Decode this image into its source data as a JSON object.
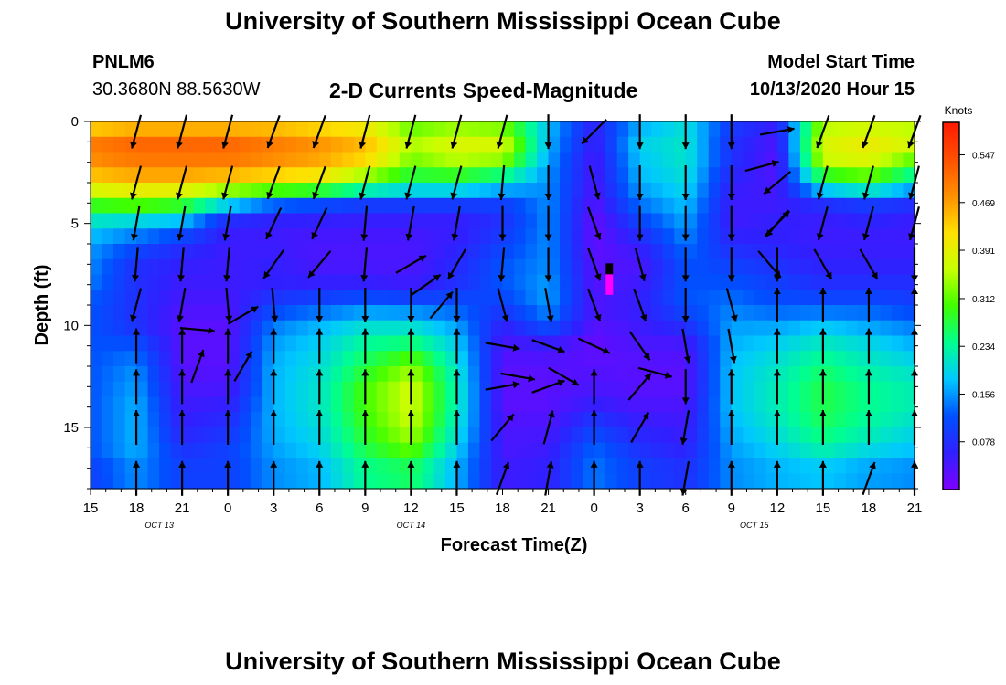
{
  "header": {
    "title": "University of Southern Mississippi Ocean Cube",
    "station_id": "PNLM6",
    "station_coords": "30.3680N 88.5630W",
    "chart_title": "2-D Currents Speed-Magnitude",
    "model_label": "Model Start Time",
    "model_time": "10/13/2020 Hour 15"
  },
  "footer": {
    "title": "University of Southern Mississippi Ocean Cube"
  },
  "chart_data": {
    "type": "heatmap",
    "title": "2-D Currents Speed-Magnitude",
    "xlabel": "Forecast Time(Z)",
    "ylabel": "Depth (ft)",
    "x_ticks": [
      {
        "t": 0,
        "label": "15"
      },
      {
        "t": 3,
        "label": "18"
      },
      {
        "t": 6,
        "label": "21"
      },
      {
        "t": 9,
        "label": "0"
      },
      {
        "t": 12,
        "label": "3"
      },
      {
        "t": 15,
        "label": "6"
      },
      {
        "t": 18,
        "label": "9"
      },
      {
        "t": 21,
        "label": "12"
      },
      {
        "t": 24,
        "label": "15"
      },
      {
        "t": 27,
        "label": "18"
      },
      {
        "t": 30,
        "label": "21"
      },
      {
        "t": 33,
        "label": "0"
      },
      {
        "t": 36,
        "label": "3"
      },
      {
        "t": 39,
        "label": "6"
      },
      {
        "t": 42,
        "label": "9"
      },
      {
        "t": 45,
        "label": "12"
      },
      {
        "t": 48,
        "label": "15"
      },
      {
        "t": 51,
        "label": "18"
      },
      {
        "t": 54,
        "label": "21"
      }
    ],
    "date_labels": [
      {
        "t": 4.5,
        "label": "OCT  13"
      },
      {
        "t": 21,
        "label": "OCT  14"
      },
      {
        "t": 43.5,
        "label": "OCT  15"
      }
    ],
    "xlim": [
      0,
      54
    ],
    "ylim": [
      0,
      18
    ],
    "y_ticks": [
      0,
      5,
      10,
      15
    ],
    "legend": {
      "unit": "Knots",
      "range": [
        0,
        0.6
      ],
      "ticks": [
        0.078,
        0.156,
        0.234,
        0.312,
        0.391,
        0.469,
        0.547
      ],
      "tick_labels": [
        "0.078",
        "0.156",
        "0.234",
        "0.312",
        "0.391",
        "0.469",
        "0.547"
      ],
      "colors": [
        "#7f00ff",
        "#3020ff",
        "#0050ff",
        "#00c8ff",
        "#00ff90",
        "#40ff00",
        "#c8ff00",
        "#ffe000",
        "#ff9000",
        "#ff5000",
        "#ff1a00"
      ]
    },
    "grid_depths": [
      0,
      1,
      2,
      3,
      4,
      5,
      6,
      7,
      8,
      9,
      10,
      11,
      12,
      13,
      14,
      15,
      16,
      17,
      18
    ],
    "speed_profiles": [
      {
        "t": 0,
        "speeds": [
          0.4,
          0.5,
          0.48,
          0.42,
          0.3,
          0.2,
          0.16,
          0.15,
          0.14,
          0.12,
          0.12,
          0.12,
          0.12,
          0.12,
          0.12,
          0.12,
          0.12,
          0.1,
          0.1
        ]
      },
      {
        "t": 3,
        "speeds": [
          0.42,
          0.52,
          0.5,
          0.44,
          0.32,
          0.18,
          0.12,
          0.08,
          0.08,
          0.08,
          0.08,
          0.12,
          0.15,
          0.16,
          0.17,
          0.17,
          0.17,
          0.15,
          0.15
        ]
      },
      {
        "t": 6,
        "speeds": [
          0.42,
          0.52,
          0.5,
          0.44,
          0.3,
          0.16,
          0.08,
          0.06,
          0.05,
          0.04,
          0.03,
          0.03,
          0.03,
          0.04,
          0.05,
          0.06,
          0.08,
          0.1,
          0.1
        ]
      },
      {
        "t": 9,
        "speeds": [
          0.42,
          0.52,
          0.5,
          0.42,
          0.2,
          0.06,
          0.05,
          0.05,
          0.05,
          0.04,
          0.03,
          0.03,
          0.03,
          0.04,
          0.06,
          0.08,
          0.1,
          0.1,
          0.1
        ]
      },
      {
        "t": 12,
        "speeds": [
          0.42,
          0.5,
          0.48,
          0.4,
          0.14,
          0.05,
          0.05,
          0.06,
          0.06,
          0.1,
          0.14,
          0.16,
          0.17,
          0.17,
          0.17,
          0.17,
          0.16,
          0.15,
          0.15
        ]
      },
      {
        "t": 15,
        "speeds": [
          0.4,
          0.48,
          0.46,
          0.38,
          0.12,
          0.05,
          0.04,
          0.04,
          0.06,
          0.12,
          0.17,
          0.19,
          0.2,
          0.21,
          0.21,
          0.2,
          0.19,
          0.17,
          0.17
        ]
      },
      {
        "t": 18,
        "speeds": [
          0.38,
          0.45,
          0.42,
          0.3,
          0.1,
          0.05,
          0.04,
          0.04,
          0.06,
          0.14,
          0.2,
          0.24,
          0.27,
          0.3,
          0.3,
          0.29,
          0.27,
          0.24,
          0.24
        ]
      },
      {
        "t": 21,
        "speeds": [
          0.3,
          0.35,
          0.32,
          0.25,
          0.1,
          0.05,
          0.04,
          0.04,
          0.05,
          0.13,
          0.2,
          0.26,
          0.33,
          0.37,
          0.37,
          0.36,
          0.32,
          0.26,
          0.26
        ]
      },
      {
        "t": 24,
        "speeds": [
          0.32,
          0.38,
          0.35,
          0.25,
          0.1,
          0.05,
          0.06,
          0.07,
          0.08,
          0.12,
          0.16,
          0.19,
          0.21,
          0.22,
          0.22,
          0.21,
          0.19,
          0.17,
          0.17
        ]
      },
      {
        "t": 27,
        "speeds": [
          0.3,
          0.38,
          0.33,
          0.2,
          0.1,
          0.08,
          0.1,
          0.12,
          0.12,
          0.1,
          0.06,
          0.04,
          0.03,
          0.03,
          0.03,
          0.04,
          0.04,
          0.05,
          0.05
        ]
      },
      {
        "t": 30,
        "speeds": [
          0.18,
          0.17,
          0.16,
          0.15,
          0.15,
          0.15,
          0.15,
          0.15,
          0.16,
          0.16,
          0.12,
          0.05,
          0.03,
          0.03,
          0.03,
          0.04,
          0.05,
          0.06,
          0.06
        ]
      },
      {
        "t": 33,
        "speeds": [
          0.06,
          0.05,
          0.04,
          0.04,
          0.03,
          0.02,
          0.02,
          0.03,
          0.03,
          0.04,
          0.03,
          0.02,
          0.03,
          0.04,
          0.06,
          0.1,
          0.13,
          0.14,
          0.14
        ]
      },
      {
        "t": 36,
        "speeds": [
          0.16,
          0.19,
          0.18,
          0.17,
          0.14,
          0.1,
          0.06,
          0.04,
          0.05,
          0.06,
          0.05,
          0.04,
          0.03,
          0.03,
          0.04,
          0.06,
          0.08,
          0.1,
          0.1
        ]
      },
      {
        "t": 39,
        "speeds": [
          0.2,
          0.21,
          0.21,
          0.2,
          0.18,
          0.16,
          0.14,
          0.12,
          0.12,
          0.12,
          0.08,
          0.04,
          0.03,
          0.03,
          0.04,
          0.05,
          0.06,
          0.08,
          0.08
        ]
      },
      {
        "t": 42,
        "speeds": [
          0.1,
          0.08,
          0.08,
          0.06,
          0.05,
          0.05,
          0.07,
          0.1,
          0.12,
          0.14,
          0.16,
          0.17,
          0.18,
          0.18,
          0.18,
          0.17,
          0.16,
          0.15,
          0.15
        ]
      },
      {
        "t": 45,
        "speeds": [
          0.06,
          0.04,
          0.03,
          0.04,
          0.05,
          0.06,
          0.06,
          0.08,
          0.1,
          0.12,
          0.16,
          0.19,
          0.21,
          0.22,
          0.22,
          0.21,
          0.19,
          0.17,
          0.17
        ]
      },
      {
        "t": 48,
        "speeds": [
          0.34,
          0.38,
          0.36,
          0.24,
          0.08,
          0.05,
          0.05,
          0.06,
          0.08,
          0.12,
          0.18,
          0.22,
          0.25,
          0.27,
          0.27,
          0.26,
          0.23,
          0.18,
          0.18
        ]
      },
      {
        "t": 51,
        "speeds": [
          0.36,
          0.4,
          0.38,
          0.28,
          0.1,
          0.06,
          0.05,
          0.06,
          0.08,
          0.12,
          0.16,
          0.2,
          0.22,
          0.24,
          0.24,
          0.23,
          0.2,
          0.16,
          0.16
        ]
      },
      {
        "t": 54,
        "speeds": [
          0.34,
          0.38,
          0.3,
          0.2,
          0.08,
          0.05,
          0.05,
          0.06,
          0.08,
          0.1,
          0.14,
          0.17,
          0.2,
          0.22,
          0.22,
          0.2,
          0.18,
          0.15,
          0.15
        ]
      }
    ],
    "highlight": {
      "t": 34,
      "depth_from": 7,
      "depth_to": 8.5,
      "color": "#ff00ff"
    },
    "vector_depths": [
      0.5,
      3,
      5,
      7,
      9,
      11,
      13,
      15,
      17.5
    ],
    "vectors": [
      {
        "t": 3,
        "dirs": [
          195,
          195,
          190,
          185,
          195,
          0,
          0,
          0,
          0
        ]
      },
      {
        "t": 6,
        "dirs": [
          195,
          195,
          190,
          185,
          190,
          0,
          0,
          0,
          0
        ]
      },
      {
        "t": 9,
        "dirs": [
          195,
          195,
          190,
          185,
          175,
          0,
          0,
          0,
          0
        ]
      },
      {
        "t": 12,
        "dirs": [
          200,
          200,
          205,
          215,
          175,
          0,
          0,
          0,
          0
        ]
      },
      {
        "t": 15,
        "dirs": [
          200,
          200,
          205,
          220,
          180,
          0,
          0,
          0,
          0
        ]
      },
      {
        "t": 18,
        "dirs": [
          195,
          195,
          185,
          185,
          180,
          0,
          0,
          0,
          0
        ]
      },
      {
        "t": 21,
        "dirs": [
          195,
          195,
          190,
          60,
          180,
          0,
          0,
          0,
          0
        ]
      },
      {
        "t": 24,
        "dirs": [
          195,
          195,
          190,
          210,
          180,
          0,
          0,
          0,
          0
        ]
      },
      {
        "t": 27,
        "dirs": [
          195,
          185,
          180,
          185,
          165,
          100,
          80,
          40,
          20
        ]
      },
      {
        "t": 30,
        "dirs": [
          180,
          180,
          180,
          180,
          170,
          110,
          70,
          15,
          10
        ]
      },
      {
        "t": 33,
        "dirs": [
          225,
          165,
          160,
          160,
          160,
          115,
          0,
          0,
          0
        ]
      },
      {
        "t": 36,
        "dirs": [
          180,
          180,
          180,
          165,
          160,
          145,
          40,
          30,
          0
        ]
      },
      {
        "t": 39,
        "dirs": [
          180,
          180,
          180,
          180,
          180,
          170,
          180,
          190,
          190
        ]
      },
      {
        "t": 42,
        "dirs": [
          180,
          180,
          180,
          180,
          165,
          170,
          0,
          0,
          0
        ]
      },
      {
        "t": 45,
        "dirs": [
          80,
          230,
          220,
          180,
          0,
          0,
          0,
          0,
          0
        ]
      },
      {
        "t": 48,
        "dirs": [
          200,
          195,
          195,
          150,
          0,
          0,
          0,
          0,
          0
        ]
      },
      {
        "t": 51,
        "dirs": [
          200,
          195,
          195,
          150,
          0,
          0,
          0,
          0,
          20
        ]
      },
      {
        "t": 54,
        "dirs": [
          200,
          195,
          195,
          180,
          0,
          0,
          0,
          0,
          0
        ]
      }
    ],
    "extra_vectors": [
      {
        "t": 7,
        "depth": 10.2,
        "dir": 95
      },
      {
        "t": 10,
        "depth": 9.5,
        "dir": 60
      },
      {
        "t": 7,
        "depth": 12,
        "dir": 20
      },
      {
        "t": 10,
        "depth": 12,
        "dir": 30
      },
      {
        "t": 22,
        "depth": 8,
        "dir": 55
      },
      {
        "t": 23,
        "depth": 9,
        "dir": 40
      },
      {
        "t": 28,
        "depth": 12.5,
        "dir": 100
      },
      {
        "t": 31,
        "depth": 12.5,
        "dir": 120
      },
      {
        "t": 37,
        "depth": 12.3,
        "dir": 105
      },
      {
        "t": 44,
        "depth": 2.2,
        "dir": 75
      },
      {
        "t": 45,
        "depth": 5,
        "dir": 45
      },
      {
        "t": 44.5,
        "depth": 7,
        "dir": 140
      }
    ]
  }
}
